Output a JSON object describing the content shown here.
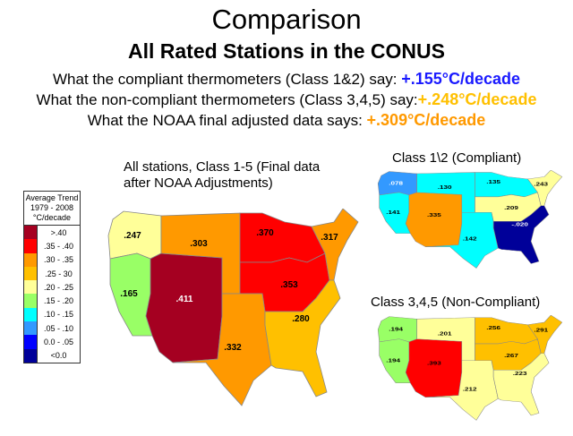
{
  "title": "Comparison",
  "subtitle": "All Rated Stations in the CONUS",
  "lines": [
    {
      "text": "What the compliant thermometers (Class 1&2) say: ",
      "value": "+.155°C/decade",
      "color": "#1a1aff"
    },
    {
      "text": "What the non-compliant thermometers (Class 3,4,5) say:",
      "value": "+.248°C/decade",
      "color": "#ffc000"
    },
    {
      "text": "What the NOAA final adjusted data says:  ",
      "value": "+.309°C/decade",
      "color": "#ff9900"
    }
  ],
  "legend": {
    "header": [
      "Average Trend",
      "1979 - 2008",
      "°C/decade"
    ],
    "items": [
      {
        "label": ">.40",
        "color": "#a50021"
      },
      {
        "label": ".35 - .40",
        "color": "#ff0000"
      },
      {
        "label": ".30 - .35",
        "color": "#ff9900"
      },
      {
        "label": ".25 - 30",
        "color": "#ffc000"
      },
      {
        "label": ".20 - .25",
        "color": "#ffff99"
      },
      {
        "label": ".15 - .20",
        "color": "#99ff66"
      },
      {
        "label": ".10 - .15",
        "color": "#00ffff"
      },
      {
        "label": ".05 - .10",
        "color": "#3399ff"
      },
      {
        "label": "0.0 - .05",
        "color": "#0000ff"
      },
      {
        "label": "<0.0",
        "color": "#000099"
      }
    ]
  },
  "maps": [
    {
      "title": "All stations, Class 1-5 (Final data after NOAA Adjustments)",
      "regions": {
        "nw": {
          "value": ".247",
          "color": "#ffff99"
        },
        "west": {
          "value": ".165",
          "color": "#99ff66"
        },
        "sw": {
          "value": ".411",
          "color": "#a50021"
        },
        "plains": {
          "value": ".303",
          "color": "#ff9900"
        },
        "south": {
          "value": ".332",
          "color": "#ff9900"
        },
        "umw": {
          "value": ".370",
          "color": "#ff0000"
        },
        "ohio": {
          "value": ".353",
          "color": "#ff0000"
        },
        "ne": {
          "value": ".317",
          "color": "#ff9900"
        },
        "se": {
          "value": ".280",
          "color": "#ffc000"
        }
      }
    },
    {
      "title": "Class 1\\2 (Compliant)",
      "regions": {
        "nw": {
          "value": ".078",
          "color": "#3399ff"
        },
        "west": {
          "value": ".141",
          "color": "#00ffff"
        },
        "sw": {
          "value": ".335",
          "color": "#ff9900"
        },
        "plains": {
          "value": ".130",
          "color": "#00ffff"
        },
        "south": {
          "value": ".142",
          "color": "#00ffff"
        },
        "umw": {
          "value": ".135",
          "color": "#00ffff"
        },
        "ohio": {
          "value": ".209",
          "color": "#ffff99"
        },
        "ne": {
          "value": ".243",
          "color": "#ffff99"
        },
        "se": {
          "value": "-.020",
          "color": "#000099"
        }
      }
    },
    {
      "title": "Class 3,4,5 (Non-Compliant)",
      "regions": {
        "nw": {
          "value": ".194",
          "color": "#99ff66"
        },
        "west": {
          "value": ".194",
          "color": "#99ff66"
        },
        "sw": {
          "value": ".393",
          "color": "#ff0000"
        },
        "plains": {
          "value": ".201",
          "color": "#ffff99"
        },
        "south": {
          "value": ".212",
          "color": "#ffff99"
        },
        "umw": {
          "value": ".256",
          "color": "#ffc000"
        },
        "ohio": {
          "value": ".267",
          "color": "#ffc000"
        },
        "ne": {
          "value": ".291",
          "color": "#ffc000"
        },
        "se": {
          "value": ".223",
          "color": "#ffff99"
        }
      }
    }
  ]
}
